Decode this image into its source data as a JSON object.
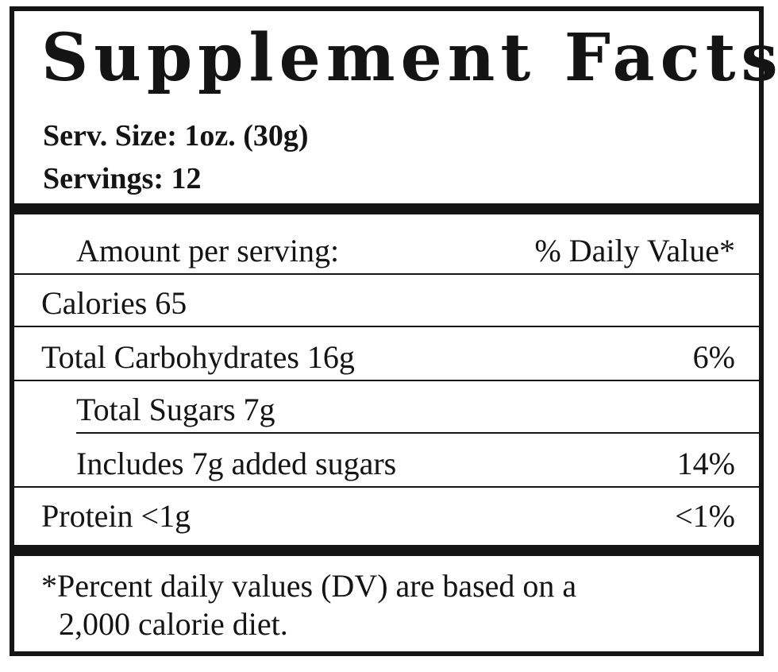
{
  "title": "Supplement Facts",
  "serving_size": "Serv. Size: 1oz. (30g)",
  "servings": "Servings: 12",
  "table": {
    "header_left": "Amount per serving:",
    "header_right": "% Daily Value*",
    "rows": [
      {
        "label": "Calories 65",
        "dv": ""
      },
      {
        "label": "Total Carbohydrates 16g",
        "dv": "6%"
      },
      {
        "label": "Total Sugars 7g",
        "dv": ""
      },
      {
        "label": "Includes 7g added sugars",
        "dv": "14%"
      },
      {
        "label": "Protein <1g",
        "dv": "<1%"
      }
    ]
  },
  "footnote": {
    "line1": "*Percent daily values (DV) are based on a",
    "line2": "2,000 calorie diet."
  }
}
